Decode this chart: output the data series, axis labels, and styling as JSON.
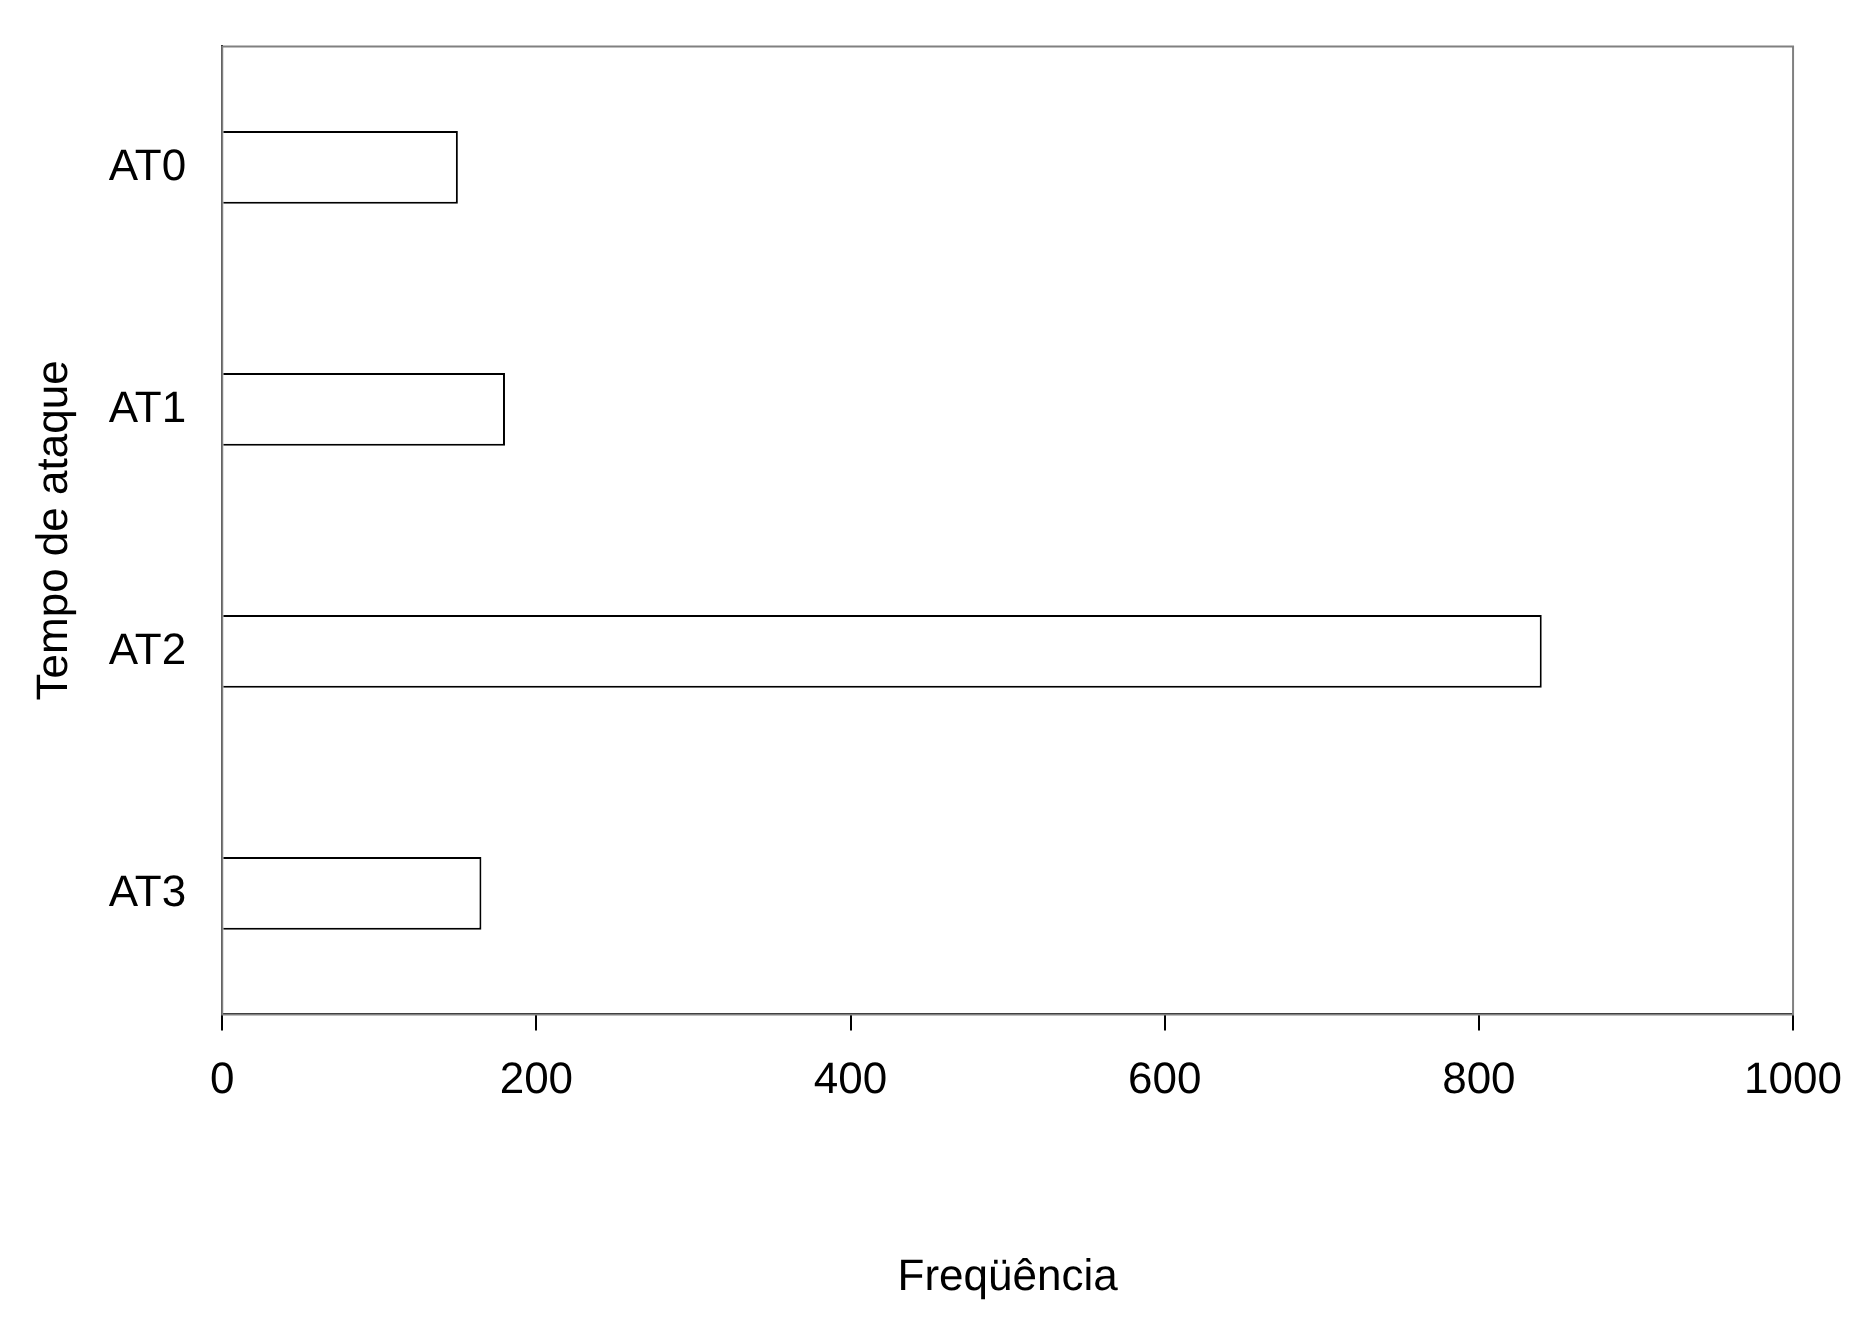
{
  "chart_data": {
    "type": "bar",
    "orientation": "horizontal",
    "xlabel": "Freqüência",
    "ylabel": "Tempo de ataque",
    "categories": [
      "AT0",
      "AT1",
      "AT2",
      "AT3"
    ],
    "values": [
      150,
      180,
      840,
      165
    ],
    "color": "#ffffff",
    "xlim": [
      0,
      1000
    ],
    "xticks": [
      0,
      200,
      400,
      600,
      800,
      1000
    ],
    "grid": false,
    "legend": false
  }
}
